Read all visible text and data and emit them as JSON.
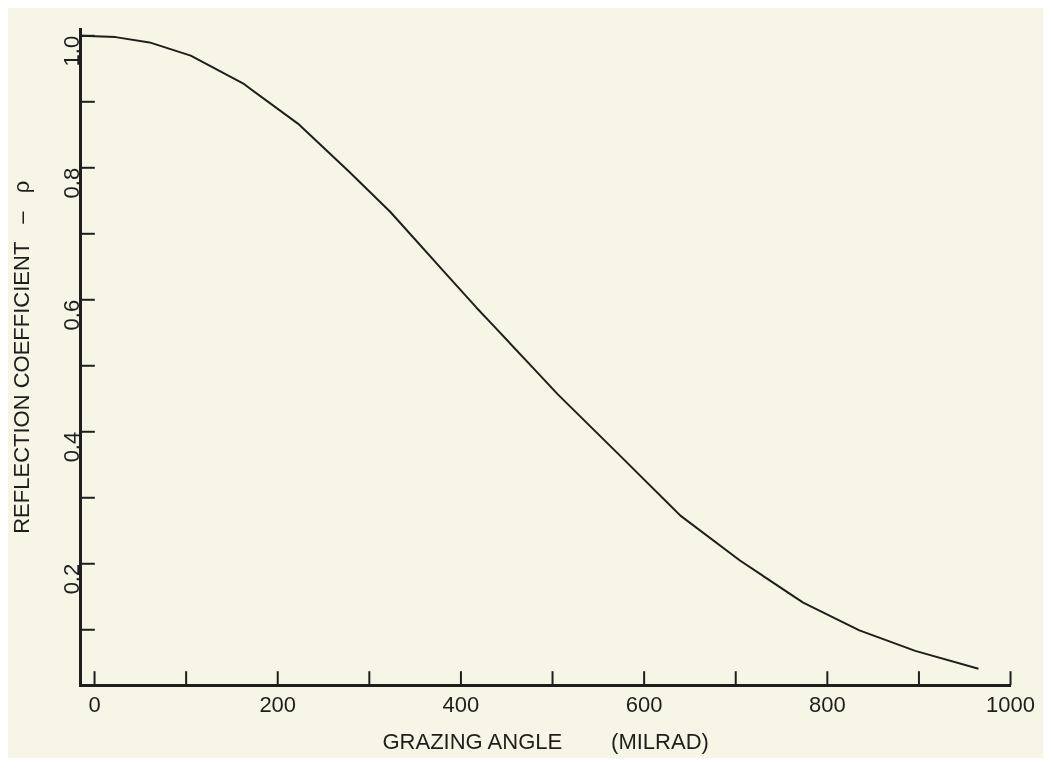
{
  "chart_data": {
    "type": "line",
    "xlabel": "GRAZING ANGLE        (MILRAD)",
    "ylabel": "REFLECTION COEFFICIENT   –   ρ",
    "x": [
      -14.7,
      23,
      60,
      105,
      162,
      222,
      278,
      323,
      380,
      417,
      436,
      480,
      505.5,
      570.6,
      639.6,
      704.6,
      773.6,
      835,
      896,
      965
    ],
    "series": [
      {
        "color": "#1e1e1e",
        "values": [
          1.0,
          0.998,
          0.99,
          0.97,
          0.928,
          0.867,
          0.794,
          0.733,
          0.645,
          0.588,
          0.56,
          0.495,
          0.457,
          0.368,
          0.273,
          0.205,
          0.141,
          0.099,
          0.068,
          0.041
        ]
      }
    ],
    "xlim": [
      -15,
      1000
    ],
    "ylim": [
      0.016,
      1.01
    ],
    "xticks": [
      0,
      {
        "value": 100,
        "label": null
      },
      200,
      {
        "value": 300,
        "label": null
      },
      400,
      {
        "value": 500,
        "label": null
      },
      600,
      {
        "value": 700,
        "label": null
      },
      800,
      {
        "value": 900,
        "label": null
      },
      1000
    ],
    "yticks": [
      {
        "value": 0.1,
        "label": null
      },
      0.2,
      {
        "value": 0.3,
        "label": null
      },
      0.4,
      {
        "value": 0.5,
        "label": null
      },
      0.6,
      {
        "value": 0.7,
        "label": null
      },
      0.8,
      {
        "value": 0.9,
        "label": null
      },
      {
        "value": 1,
        "label": "1.0"
      }
    ],
    "legend": false,
    "marker": "none",
    "line_style": "solid"
  }
}
